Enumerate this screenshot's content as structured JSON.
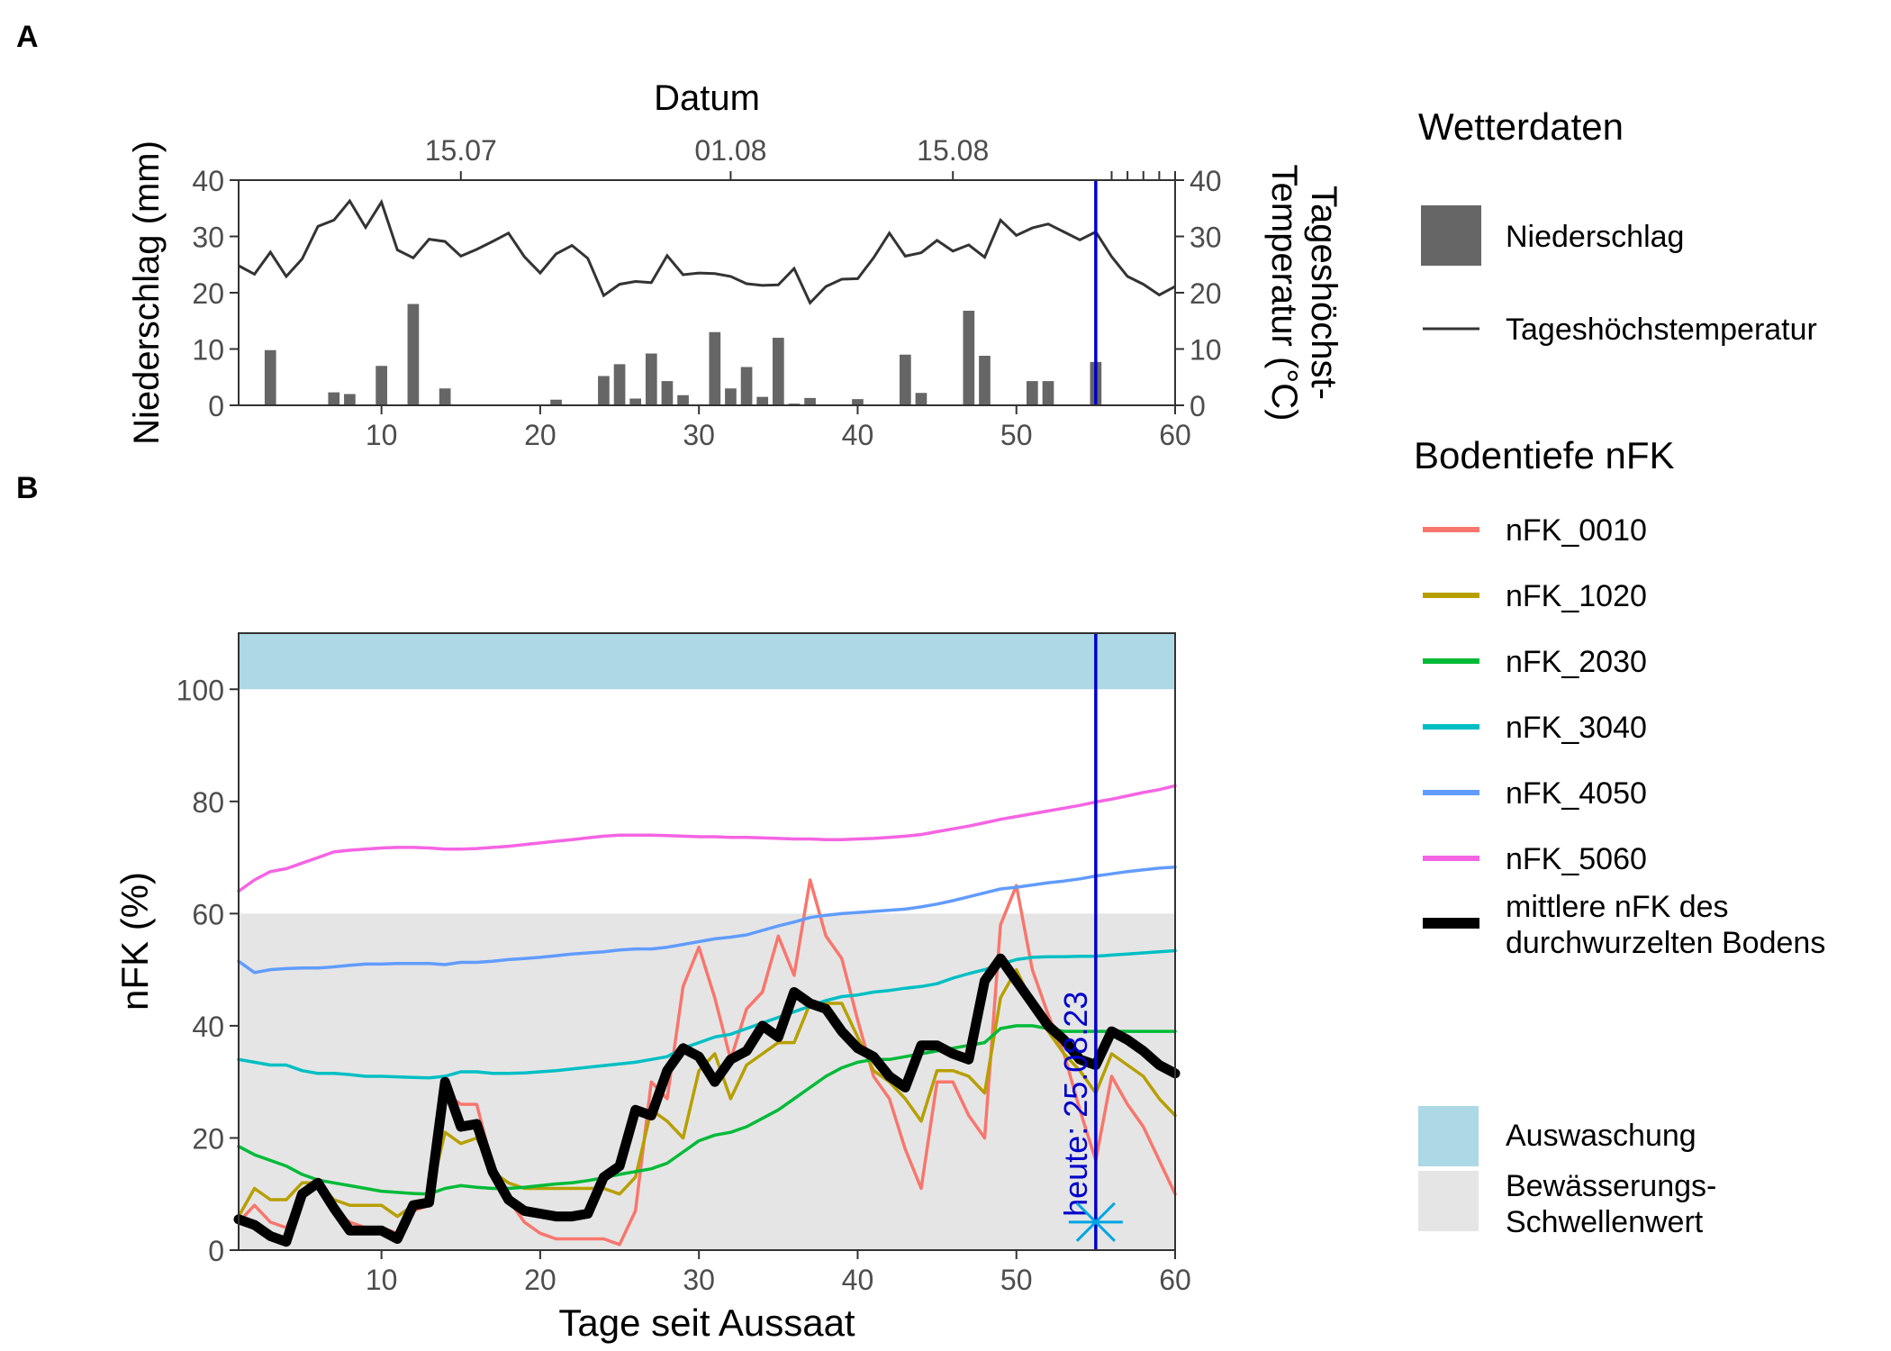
{
  "panels": {
    "a_label": "A",
    "b_label": "B"
  },
  "colors": {
    "precip": "#666666",
    "temp": "#333333",
    "today_line": "#0000CC",
    "leaching": "#ADD8E6",
    "irrigation": "#E5E5E5",
    "nFK_0010": "#F8766D",
    "nFK_1020": "#B79F00",
    "nFK_2030": "#00BA38",
    "nFK_3040": "#00BFC4",
    "nFK_4050": "#619CFF",
    "nFK_5060": "#F564E3",
    "mean": "#000000",
    "star": "#00A5E3"
  },
  "legend": {
    "weather_title": "Wetterdaten",
    "precip_label": "Niederschlag",
    "temp_label": "Tageshöchstemperatur",
    "depth_title": "Bodentiefe nFK",
    "series_labels": [
      "nFK_0010",
      "nFK_1020",
      "nFK_2030",
      "nFK_3040",
      "nFK_4050",
      "nFK_5060"
    ],
    "mean_label_1": "mittlere nFK des",
    "mean_label_2": "durchwurzelten Bodens",
    "leaching_label": "Auswaschung",
    "irrigation_label_1": "Bewässerungs-",
    "irrigation_label_2": "Schwellenwert"
  },
  "chart_data": [
    {
      "type": "bar",
      "panel": "A",
      "top_axis_title": "Datum",
      "date_ticks": [
        {
          "x": 15,
          "label": "15.07"
        },
        {
          "x": 32,
          "label": "01.08"
        },
        {
          "x": 46,
          "label": "15.08"
        }
      ],
      "extra_top_ticks_x": [
        56,
        57,
        58,
        59,
        60
      ],
      "xlim": [
        1,
        60
      ],
      "x_ticks": [
        10,
        20,
        30,
        40,
        50,
        60
      ],
      "ylabel_left": "Niederschlag (mm)",
      "ylabel_right_1": "Tageshöchst-",
      "ylabel_right_2": "Temperatur (°C)",
      "ylim": [
        0,
        40
      ],
      "y_ticks": [
        0,
        10,
        20,
        30,
        40
      ],
      "today_x": 55,
      "precip": [
        {
          "x": 3,
          "value": 9.8
        },
        {
          "x": 7,
          "value": 2.3
        },
        {
          "x": 8,
          "value": 2.0
        },
        {
          "x": 10,
          "value": 7.0
        },
        {
          "x": 12,
          "value": 18.0
        },
        {
          "x": 14,
          "value": 3.0
        },
        {
          "x": 21,
          "value": 1.0
        },
        {
          "x": 24,
          "value": 5.2
        },
        {
          "x": 25,
          "value": 7.3
        },
        {
          "x": 26,
          "value": 1.2
        },
        {
          "x": 27,
          "value": 9.2
        },
        {
          "x": 28,
          "value": 4.3
        },
        {
          "x": 29,
          "value": 1.8
        },
        {
          "x": 31,
          "value": 13.0
        },
        {
          "x": 32,
          "value": 3.0
        },
        {
          "x": 33,
          "value": 6.8
        },
        {
          "x": 34,
          "value": 1.5
        },
        {
          "x": 35,
          "value": 12.0
        },
        {
          "x": 36,
          "value": 0.3
        },
        {
          "x": 37,
          "value": 1.3
        },
        {
          "x": 40,
          "value": 1.1
        },
        {
          "x": 43,
          "value": 9.0
        },
        {
          "x": 44,
          "value": 2.2
        },
        {
          "x": 47,
          "value": 16.8
        },
        {
          "x": 48,
          "value": 8.8
        },
        {
          "x": 51,
          "value": 4.3
        },
        {
          "x": 52,
          "value": 4.3
        },
        {
          "x": 55,
          "value": 7.7
        }
      ],
      "temperature": [
        24.8,
        23.3,
        27.2,
        22.9,
        26.0,
        31.8,
        32.9,
        36.3,
        31.6,
        36.1,
        27.6,
        26.2,
        29.5,
        29.1,
        26.5,
        27.7,
        29.1,
        30.6,
        26.4,
        23.5,
        26.9,
        28.4,
        26.1,
        19.5,
        21.5,
        22.0,
        21.8,
        26.6,
        23.2,
        23.5,
        23.4,
        22.9,
        21.6,
        21.3,
        21.4,
        24.3,
        18.2,
        21.1,
        22.4,
        22.5,
        26.2,
        30.6,
        26.5,
        27.1,
        29.3,
        27.4,
        28.5,
        26.3,
        32.9,
        30.2,
        31.5,
        32.2,
        30.8,
        29.4,
        30.8,
        26.4,
        22.9,
        21.5,
        19.6,
        21.1
      ]
    },
    {
      "type": "line",
      "panel": "B",
      "xlabel": "Tage seit Aussaat",
      "ylabel": "nFK (%)",
      "xlim": [
        1,
        60
      ],
      "x_ticks": [
        10,
        20,
        30,
        40,
        50,
        60
      ],
      "ylim": [
        0,
        110
      ],
      "y_ticks": [
        0,
        20,
        40,
        60,
        80,
        100
      ],
      "leaching_range": [
        100,
        110
      ],
      "irrigation_threshold": 60,
      "today_x": 55,
      "today_label": "heute: 25.08.23",
      "marker": {
        "x": 55,
        "y": 5
      },
      "series": [
        {
          "name": "nFK_0010",
          "values": [
            5,
            8,
            5,
            4,
            10,
            12,
            7,
            5,
            4,
            4,
            3,
            7,
            8,
            28,
            26,
            26,
            15,
            9,
            5,
            3,
            2,
            2,
            2,
            2,
            1,
            7,
            30,
            27,
            47,
            54,
            45,
            34,
            43,
            46,
            56,
            49,
            66,
            56,
            52,
            41,
            31,
            27,
            18,
            11,
            30,
            30,
            24,
            20,
            58,
            65,
            50,
            42,
            35,
            25,
            16,
            31,
            26,
            22,
            16,
            10
          ]
        },
        {
          "name": "nFK_1020",
          "values": [
            6,
            11,
            9,
            9,
            12,
            12,
            9,
            8,
            8,
            8,
            6,
            8,
            9,
            21,
            19,
            20,
            14,
            12,
            11,
            11,
            11,
            11,
            11,
            11,
            10,
            13,
            25,
            23,
            20,
            32,
            35,
            27,
            33,
            35,
            37,
            37,
            44,
            44,
            44,
            38,
            32,
            30,
            27,
            23,
            32,
            32,
            31,
            28,
            45,
            50,
            44,
            39,
            35,
            32,
            28,
            35,
            33,
            31,
            27,
            24
          ]
        },
        {
          "name": "nFK_2030",
          "values": [
            18.5,
            17,
            16,
            15,
            13.5,
            12.5,
            12,
            11.5,
            11,
            10.5,
            10.3,
            10.1,
            10,
            11,
            11.5,
            11.2,
            11,
            11,
            11.2,
            11.5,
            11.8,
            12,
            12.4,
            12.9,
            13.5,
            14,
            14.5,
            15.5,
            17.5,
            19.5,
            20.5,
            21,
            22,
            23.5,
            25,
            27,
            29,
            31,
            32.5,
            33.5,
            34,
            34,
            34.5,
            35,
            35.5,
            36,
            36.5,
            37,
            39.5,
            40,
            40,
            39.5,
            39,
            39,
            39,
            39,
            39,
            39,
            39,
            39
          ]
        },
        {
          "name": "nFK_3040",
          "values": [
            34,
            33.5,
            33,
            33,
            32,
            31.5,
            31.5,
            31.3,
            31,
            31,
            30.9,
            30.8,
            30.7,
            31,
            31.8,
            31.8,
            31.5,
            31.5,
            31.6,
            31.8,
            32,
            32.3,
            32.6,
            32.9,
            33.2,
            33.5,
            34,
            34.5,
            36,
            37,
            38,
            38.5,
            39.5,
            40.5,
            41.5,
            42.5,
            43.5,
            44.5,
            45.2,
            45.5,
            46,
            46.3,
            46.7,
            47,
            47.5,
            48.5,
            49.3,
            50,
            51,
            51.8,
            52.2,
            52.3,
            52.3,
            52.4,
            52.4,
            52.6,
            52.8,
            53,
            53.2,
            53.4
          ]
        },
        {
          "name": "nFK_4050",
          "values": [
            51.5,
            49.5,
            50,
            50.2,
            50.3,
            50.3,
            50.5,
            50.8,
            51,
            51,
            51.1,
            51.1,
            51.1,
            50.9,
            51.3,
            51.3,
            51.5,
            51.8,
            52,
            52.2,
            52.5,
            52.8,
            53,
            53.2,
            53.5,
            53.7,
            53.7,
            54,
            54.5,
            55,
            55.5,
            55.8,
            56.2,
            57,
            57.8,
            58.5,
            59.3,
            59.7,
            60,
            60.2,
            60.4,
            60.6,
            60.8,
            61.2,
            61.7,
            62.3,
            63,
            63.7,
            64.4,
            64.7,
            65.1,
            65.5,
            65.8,
            66.2,
            66.7,
            67.1,
            67.5,
            67.8,
            68.1,
            68.3
          ]
        },
        {
          "name": "nFK_5060",
          "values": [
            64,
            66,
            67.5,
            68,
            69,
            70,
            71,
            71.3,
            71.5,
            71.7,
            71.8,
            71.8,
            71.7,
            71.5,
            71.5,
            71.6,
            71.8,
            72,
            72.3,
            72.6,
            72.9,
            73.2,
            73.5,
            73.8,
            74,
            74,
            74,
            73.9,
            73.8,
            73.7,
            73.7,
            73.6,
            73.6,
            73.5,
            73.4,
            73.3,
            73.3,
            73.2,
            73.2,
            73.3,
            73.4,
            73.6,
            73.8,
            74.1,
            74.6,
            75.1,
            75.6,
            76.2,
            76.8,
            77.3,
            77.8,
            78.3,
            78.8,
            79.3,
            79.9,
            80.4,
            81,
            81.6,
            82.1,
            82.8
          ]
        },
        {
          "name": "mittlere nFK des durchwurzelten Bodens",
          "values": [
            5.5,
            4.5,
            2.5,
            1.5,
            10,
            12,
            7.5,
            3.5,
            3.5,
            3.5,
            2,
            8,
            8.5,
            30,
            22,
            22.5,
            14,
            9,
            7,
            6.5,
            6,
            6,
            6.5,
            13,
            15,
            25,
            24,
            32,
            36,
            34.5,
            30,
            34,
            35.5,
            40,
            38,
            46,
            44,
            43,
            39,
            36,
            34.5,
            31,
            29,
            36.5,
            36.5,
            35,
            34,
            48,
            52,
            48,
            44,
            40,
            37.5,
            34,
            33,
            39,
            37.5,
            35.5,
            33,
            31.5
          ]
        }
      ]
    }
  ]
}
